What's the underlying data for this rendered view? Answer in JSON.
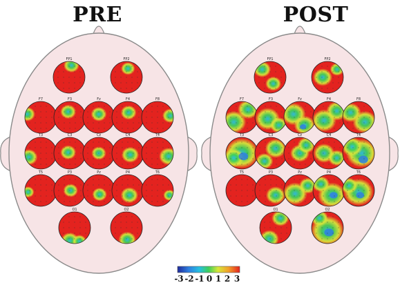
{
  "panels": [
    {
      "id": "pre",
      "title": "PRE",
      "condition": "pre",
      "electrodes": [
        {
          "label": "FP1"
        },
        {
          "label": "FP2"
        },
        {
          "label": "F7"
        },
        {
          "label": "F3"
        },
        {
          "label": "Fz"
        },
        {
          "label": "F4"
        },
        {
          "label": "F8"
        },
        {
          "label": "T3"
        },
        {
          "label": "C3"
        },
        {
          "label": "Cz"
        },
        {
          "label": "C4"
        },
        {
          "label": "T4"
        },
        {
          "label": "T5"
        },
        {
          "label": "P3"
        },
        {
          "label": "Pz"
        },
        {
          "label": "P4"
        },
        {
          "label": "T6"
        },
        {
          "label": "O1"
        },
        {
          "label": "O2"
        }
      ]
    },
    {
      "id": "post",
      "title": "POST",
      "condition": "post",
      "electrodes": [
        {
          "label": "FP1"
        },
        {
          "label": "FP2"
        },
        {
          "label": "F7"
        },
        {
          "label": "F3"
        },
        {
          "label": "Fz"
        },
        {
          "label": "F4"
        },
        {
          "label": "F8"
        },
        {
          "label": "T3"
        },
        {
          "label": "C3"
        },
        {
          "label": "Cz"
        },
        {
          "label": "C4"
        },
        {
          "label": "T4"
        },
        {
          "label": "T5"
        },
        {
          "label": "P3"
        },
        {
          "label": "Pz"
        },
        {
          "label": "P4"
        },
        {
          "label": "T6"
        },
        {
          "label": "O1"
        },
        {
          "label": "O2"
        }
      ]
    }
  ],
  "colorbar": {
    "ticks": [
      "-3",
      "-2",
      "-1",
      "0",
      "1",
      "2",
      "3"
    ],
    "colors": [
      "#1f2a9a",
      "#2f7fe0",
      "#27c0e0",
      "#3fcf5a",
      "#d7e63a",
      "#f2a02a",
      "#e3231f"
    ]
  },
  "colors": {
    "head_fill": "#f7e4e6",
    "head_stroke": "#8a8a8a",
    "map_red": "#e3231f"
  }
}
